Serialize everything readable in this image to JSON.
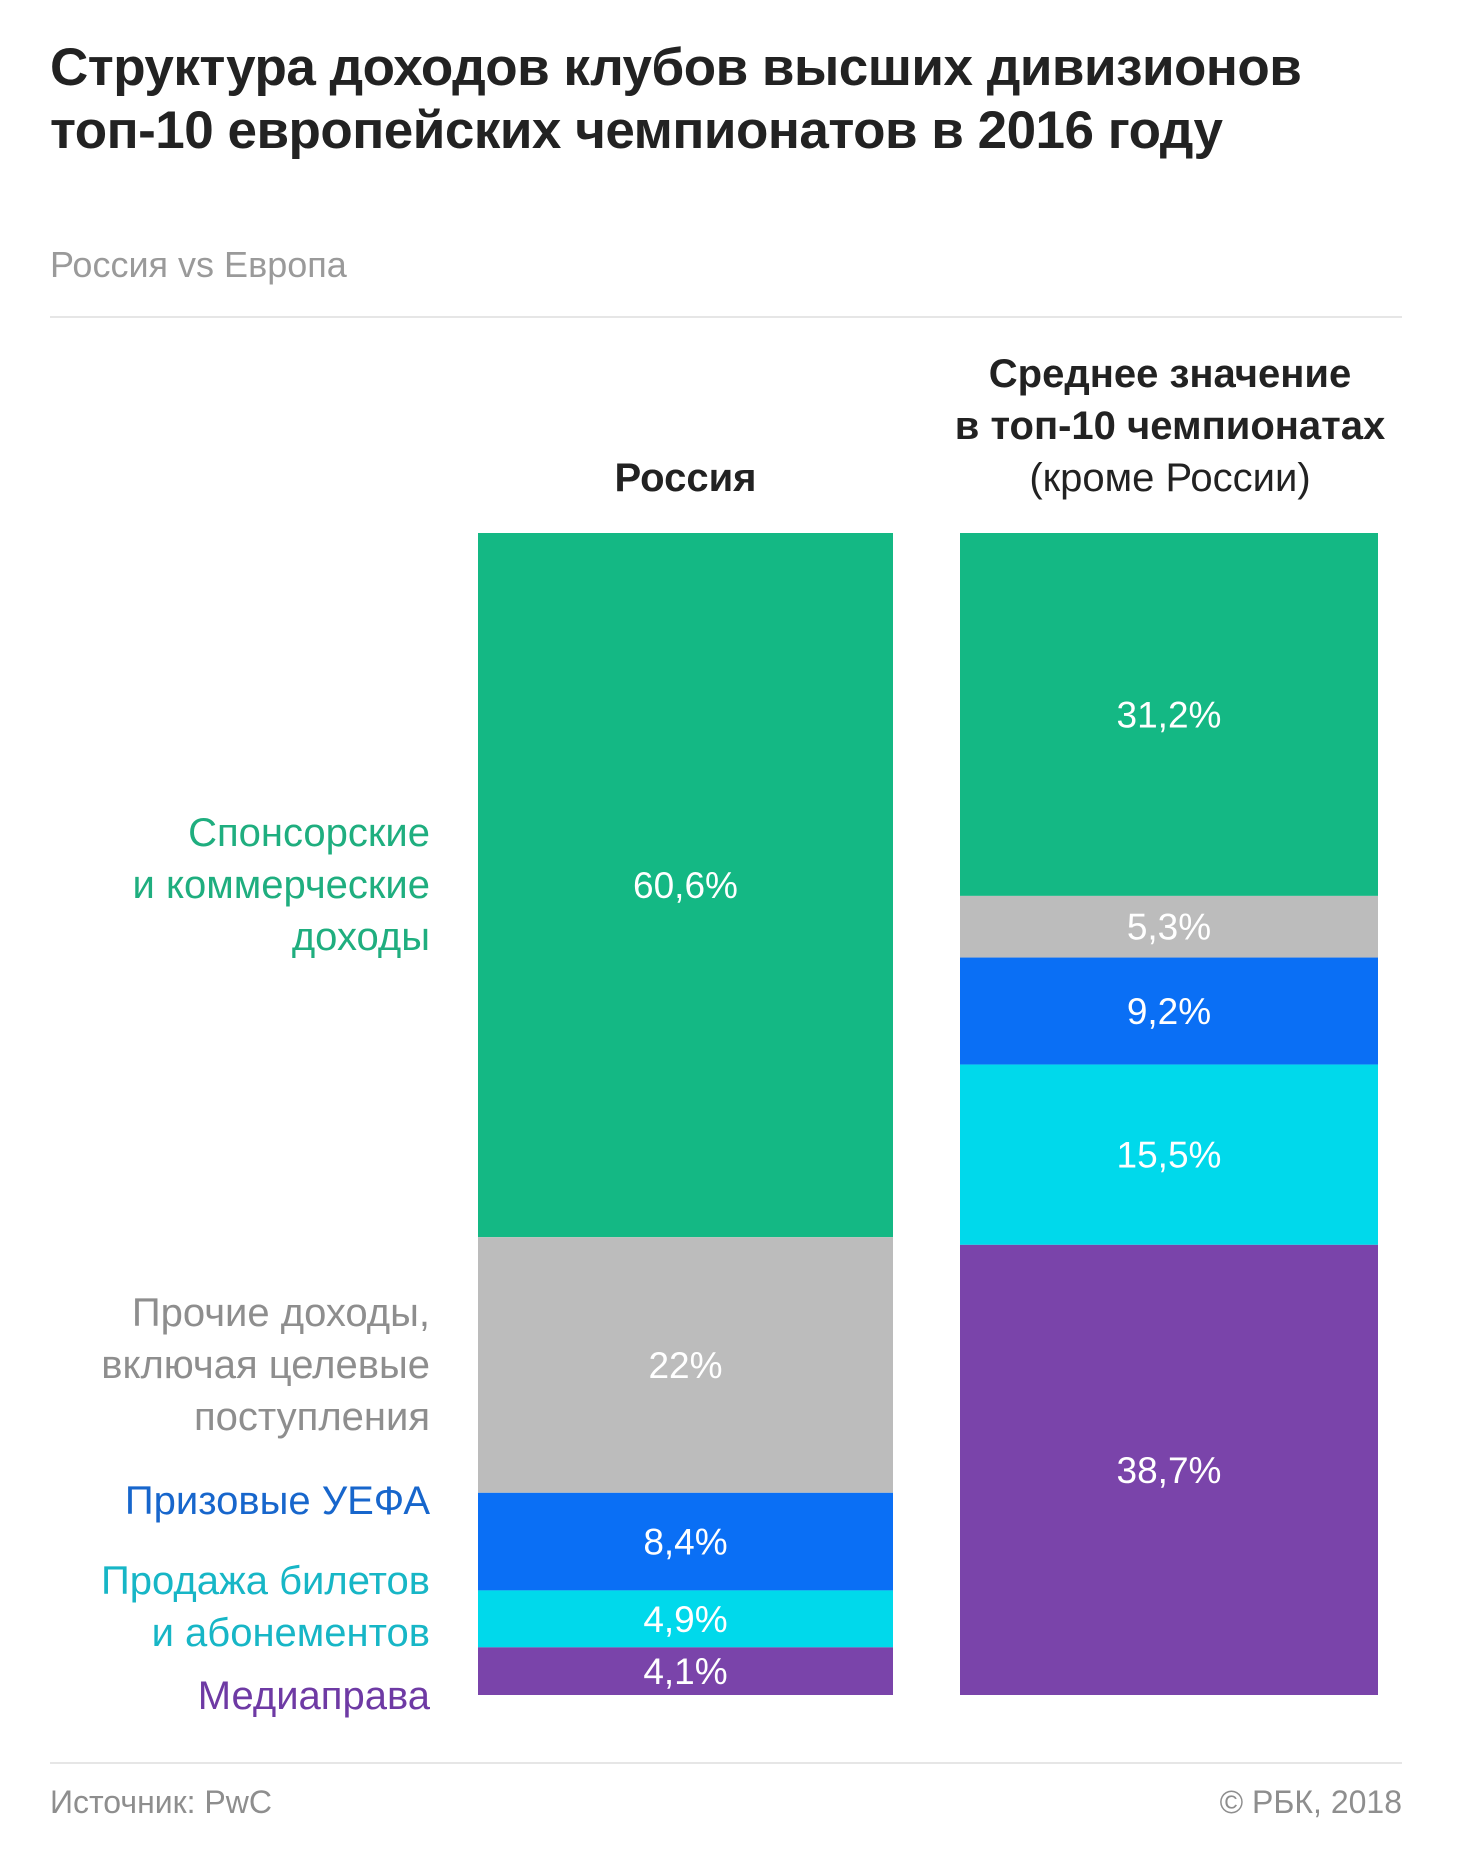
{
  "header": {
    "title": "Структура доходов клубов высших дивизионов топ-10 европейских чемпионатов в 2016 году",
    "subtitle": "Россия vs Европа"
  },
  "columns": {
    "russia": {
      "label": "Россия"
    },
    "europe": {
      "label_line1": "Среднее значение",
      "label_line2": "в топ-10 чемпионатах",
      "label_line3": "(кроме России)"
    }
  },
  "categories": [
    {
      "label": "Спонсорские\nи коммерческие\nдоходы",
      "color": "#14b884"
    },
    {
      "label": "Прочие доходы,\nвключая целевые\nпоступления",
      "color": "#bcbcbc"
    },
    {
      "label": "Призовые УЕФА",
      "color": "#0a6ff5"
    },
    {
      "label": "Продажа билетов\nи абонементов",
      "color": "#00d9eb"
    },
    {
      "label": "Медиаправа",
      "color": "#7a44aa"
    }
  ],
  "label_colors": [
    "#1fae7f",
    "#8e8e8e",
    "#1766cc",
    "#17b6c6",
    "#6e3aa4"
  ],
  "chart_data": {
    "type": "bar",
    "stacked": true,
    "title": "Структура доходов клубов высших дивизионов топ-10 европейских чемпионатов в 2016 году",
    "subtitle": "Россия vs Европа",
    "categories": [
      "Россия",
      "Среднее значение в топ-10 чемпионатах (кроме России)"
    ],
    "series": [
      {
        "name": "Спонсорские и коммерческие доходы",
        "values": [
          60.6,
          31.2
        ],
        "labels": [
          "60,6%",
          "31,2%"
        ]
      },
      {
        "name": "Прочие доходы, включая целевые поступления",
        "values": [
          22,
          5.3
        ],
        "labels": [
          "22%",
          "5,3%"
        ]
      },
      {
        "name": "Призовые УЕФА",
        "values": [
          8.4,
          9.2
        ],
        "labels": [
          "8,4%",
          "9,2%"
        ]
      },
      {
        "name": "Продажа билетов и абонементов",
        "values": [
          4.9,
          15.5
        ],
        "labels": [
          "4,9%",
          "15,5%"
        ]
      },
      {
        "name": "Медиаправа",
        "values": [
          4.1,
          38.7
        ],
        "labels": [
          "4,1%",
          "38,7%"
        ]
      }
    ],
    "xlabel": "",
    "ylabel": "",
    "ylim": [
      0,
      100
    ],
    "grid": false,
    "legend": "left"
  },
  "footer": {
    "source": "Источник: PwC",
    "copyright": "© РБК, 2018"
  }
}
